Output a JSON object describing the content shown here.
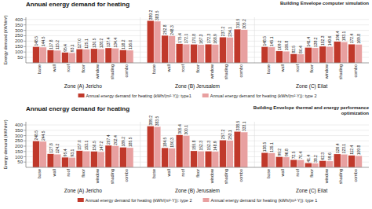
{
  "chart_data": [
    {
      "type": "bar",
      "title": "Annual energy demand for heating",
      "ylabel": "Energy demand (kWh/m²)",
      "annotations": [
        "Building Envelope computer simulation"
      ],
      "categories": [
        "base",
        "wall",
        "roof",
        "floor",
        "window",
        "shading",
        "combo",
        "base",
        "wall",
        "roof",
        "floor",
        "window",
        "shading",
        "combo",
        "base",
        "wall",
        "roof",
        "floor",
        "window",
        "shading",
        "combo"
      ],
      "category_groups": [
        "Zone (A) Jericho",
        "Zone (B) Jerusalem",
        "Zone (C) Eilat"
      ],
      "series": [
        {
          "name": "Annual energy demand for heating (kWh/(m²·Y)): type1",
          "color": "#c0392b",
          "values": [
            148.5,
            117.8,
            95.4,
            127.0,
            130.5,
            137.4,
            118.2,
            389.2,
            252.8,
            175.4,
            170.8,
            172.3,
            237.2,
            310.5,
            148.5,
            109.2,
            82.5,
            141.4,
            152.3,
            196.4,
            172.4
          ],
          "value_labels": [
            "148.5",
            "117.8",
            "95.4",
            "127.0",
            "130.5",
            "137.4",
            "118.2",
            "389.2",
            "252.8",
            "175.4",
            "170.8",
            "172.3",
            "237.2",
            "310.5",
            "148.5",
            "109.2",
            "82.5",
            "141.4",
            "152.3",
            "196.4",
            "172.4"
          ]
        },
        {
          "name": "Annual energy demand for heating (kWh/(m²·Y)): type 2",
          "color": "#e8a0a0",
          "values": [
            144.5,
            115.2,
            93.1,
            125.1,
            128.2,
            134.4,
            116.0,
            383.5,
            248.3,
            172.1,
            167.3,
            168.9,
            234.1,
            305.2,
            145.1,
            106.8,
            80.4,
            138.2,
            149.6,
            193.1,
            169.8
          ],
          "value_labels": [
            "144.5",
            "115.2",
            "93.1",
            "125.1",
            "128.2",
            "134.4",
            "116.0",
            "383.5",
            "248.3",
            "172.1",
            "167.3",
            "168.9",
            "234.1",
            "305.2",
            "145.1",
            "106.8",
            "80.4",
            "138.2",
            "149.6",
            "193.1",
            "169.8"
          ]
        }
      ],
      "ylim": [
        0,
        420
      ],
      "yticks": [
        50,
        100,
        150,
        200,
        250,
        300,
        350,
        400
      ],
      "grid": true,
      "legend": "bottom",
      "data_labels": true
    },
    {
      "type": "bar",
      "title": "Annual energy demand for heating",
      "ylabel": "Energy demand (kWh/m²)",
      "annotations": [
        "Building Envelope thermal and energy performance\noptimization"
      ],
      "categories": [
        "base",
        "wall",
        "roof",
        "floor",
        "window",
        "shading",
        "combo",
        "base",
        "wall",
        "roof",
        "floor",
        "window",
        "shading",
        "combo",
        "base",
        "wall",
        "roof",
        "floor",
        "window",
        "shading",
        "combo"
      ],
      "category_groups": [
        "Zone (A) Jericho",
        "Zone (B) Jerusalem",
        "Zone (C) Eilat"
      ],
      "series": [
        {
          "name": "Annual energy demand for heating (kWh/(m²·Y)): type 2",
          "color": "#c0392b",
          "values": [
            248.5,
            127.8,
            95.4,
            157.0,
            150.5,
            207.4,
            189.2,
            389.2,
            184.5,
            305.4,
            155.8,
            152.3,
            257.2,
            338.5,
            138.5,
            99.2,
            72.5,
            41.4,
            62.3,
            126.4,
            112.4
          ],
          "value_labels": [
            "248.5",
            "127.8",
            "95.4",
            "157.0",
            "150.5",
            "207.4",
            "189.2",
            "389.2",
            "184.5",
            "305.4",
            "155.8",
            "152.3",
            "257.2",
            "338.5",
            "138.5",
            "99.2",
            "72.5",
            "41.4",
            "62.3",
            "126.4",
            "112.4"
          ]
        },
        {
          "name": "Annual energy demand for heating (kWh/(m²·Y)): type 1",
          "color": "#e8a0a0",
          "values": [
            244.5,
            124.2,
            93.1,
            153.1,
            147.2,
            202.4,
            185.5,
            383.5,
            180.3,
            300.1,
            152.3,
            148.9,
            253.1,
            333.1,
            135.1,
            96.8,
            70.4,
            38.2,
            59.6,
            123.1,
            109.8
          ]
        }
      ],
      "ylim": [
        0,
        430
      ],
      "yticks": [
        50,
        100,
        150,
        200,
        250,
        300,
        350,
        400
      ],
      "grid": true,
      "legend": "bottom",
      "data_labels": true
    }
  ]
}
